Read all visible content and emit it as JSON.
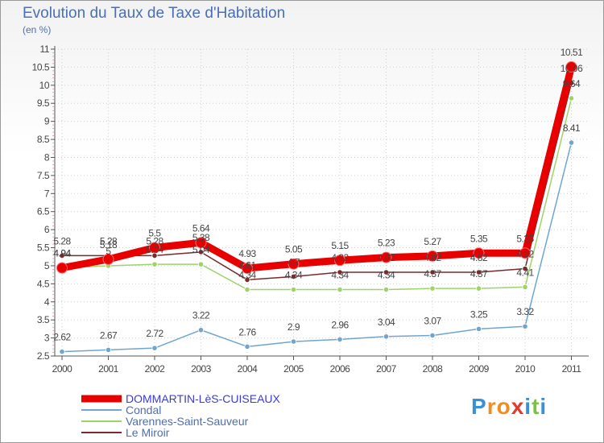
{
  "header": {
    "title": "Evolution du Taux de Taxe d'Habitation",
    "unit": "(en %)"
  },
  "brand": {
    "letters": [
      "P",
      "r",
      "o",
      "x",
      "i",
      "t",
      "i"
    ],
    "colors": [
      "#3a8fd6",
      "#f28c1e",
      "#f28c1e",
      "#e23a2e",
      "#3a8fd6",
      "#7cc242",
      "#3a8fd6"
    ]
  },
  "chart_data": {
    "type": "line",
    "title": "Evolution du Taux de Taxe d'Habitation",
    "ylabel": "(en %)",
    "xlabel": "",
    "x": [
      "2000",
      "2001",
      "2002",
      "2003",
      "2004",
      "2005",
      "2006",
      "2007",
      "2008",
      "2009",
      "2010",
      "2011"
    ],
    "ylim": [
      2.5,
      11
    ],
    "yticks": [
      "2.5",
      "3",
      "3.5",
      "4",
      "4.5",
      "5",
      "5.5",
      "6",
      "6.5",
      "7",
      "7.5",
      "8",
      "8.5",
      "9",
      "9.5",
      "10",
      "10.5",
      "11"
    ],
    "legend_position": "bottom-left",
    "series": [
      {
        "name": "DOMMARTIN-LèS-CUISEAUX",
        "color": "#e80000",
        "width": 9,
        "values": [
          4.94,
          5.18,
          5.5,
          5.64,
          4.93,
          5.05,
          5.15,
          5.23,
          5.27,
          5.35,
          5.35,
          10.51
        ],
        "labels": [
          "4.94",
          "5.18",
          "5.5",
          "5.64",
          "4.93",
          "5.05",
          "5.15",
          "5.23",
          "5.27",
          "5.35",
          "5.35",
          "10.51"
        ]
      },
      {
        "name": "Condal",
        "color": "#6fa5cf",
        "width": 1.5,
        "values": [
          2.62,
          2.67,
          2.72,
          3.22,
          2.76,
          2.9,
          2.96,
          3.04,
          3.07,
          3.25,
          3.32,
          8.41
        ],
        "labels": [
          "2.62",
          "2.67",
          "2.72",
          "3.22",
          "2.76",
          "2.9",
          "2.96",
          "3.04",
          "3.07",
          "3.25",
          "3.32",
          "8.41"
        ]
      },
      {
        "name": "Varennes-Saint-Sauveur",
        "color": "#9ed36a",
        "width": 1.5,
        "values": [
          4.94,
          5.0,
          5.04,
          5.04,
          4.34,
          4.34,
          4.34,
          4.34,
          4.37,
          4.37,
          4.41,
          9.64
        ],
        "labels": [
          "4.94",
          "5",
          "5.04",
          "5.04",
          "4.34",
          "4.34",
          "4.34",
          "4.34",
          "4.37",
          "4.37",
          "4.41",
          "9.64"
        ]
      },
      {
        "name": "Le Miroir",
        "color": "#7a2a2a",
        "width": 1.5,
        "values": [
          5.28,
          5.28,
          5.28,
          5.38,
          4.61,
          4.7,
          4.82,
          4.82,
          4.82,
          4.82,
          4.92,
          10.06
        ],
        "labels": [
          "5.28",
          "5.28",
          "5.28",
          "5.38",
          "4.61",
          "4.7",
          "4.82",
          "4.82",
          "4.82",
          "4.82",
          "4.92",
          "10.06"
        ]
      }
    ]
  }
}
